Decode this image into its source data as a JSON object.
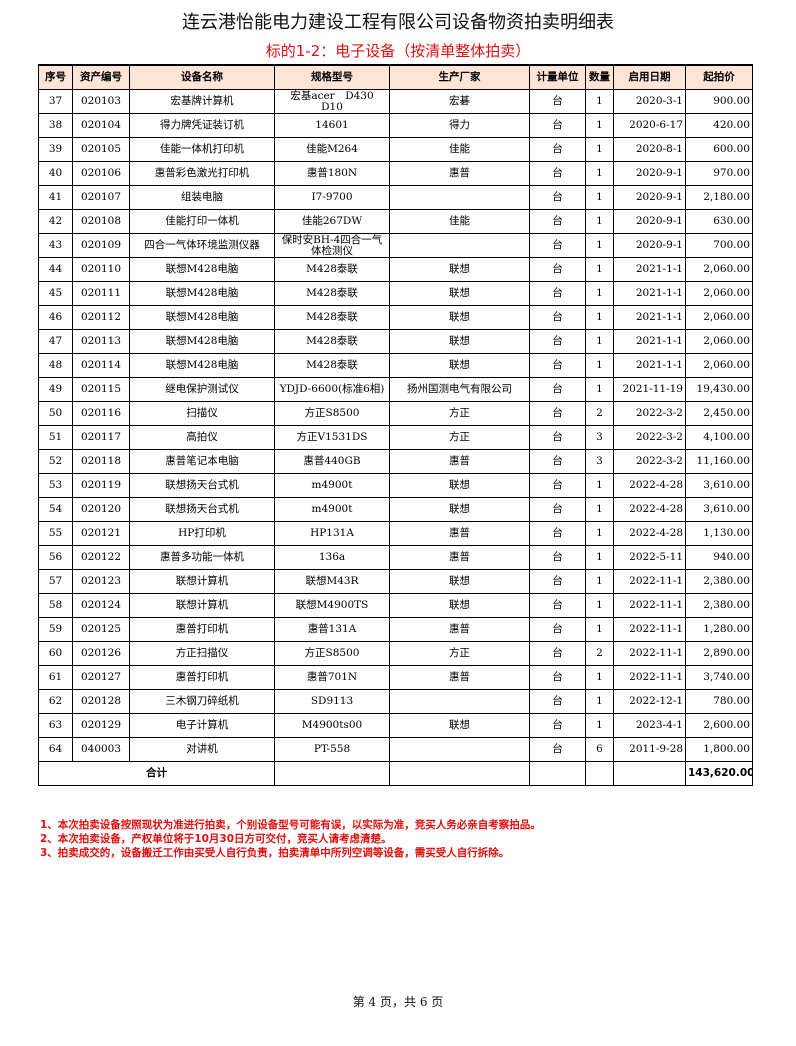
{
  "title": "连云港怡能电力建设工程有限公司设备物资拍卖明细表",
  "subtitle": "标的1-2：电子设备（按清单整体拍卖）",
  "headers": [
    "序号",
    "资产编号",
    "设备名称",
    "规格型号",
    "生产厂家",
    "计量单位",
    "数量",
    "启用日期",
    "起拍价"
  ],
  "rows": [
    [
      "37",
      "020103",
      "宏基牌计算机",
      "宏基acer　D430　D10",
      "宏碁",
      "台",
      "1",
      "2020-3-1",
      "900.00"
    ],
    [
      "38",
      "020104",
      "得力牌凭证装订机",
      "14601",
      "得力",
      "台",
      "1",
      "2020-6-17",
      "420.00"
    ],
    [
      "39",
      "020105",
      "佳能一体机打印机",
      "佳能M264",
      "佳能",
      "台",
      "1",
      "2020-8-1",
      "600.00"
    ],
    [
      "40",
      "020106",
      "惠普彩色激光打印机",
      "惠普180N",
      "惠普",
      "台",
      "1",
      "2020-9-1",
      "970.00"
    ],
    [
      "41",
      "020107",
      "组装电脑",
      "I7-9700",
      "",
      "台",
      "1",
      "2020-9-1",
      "2,180.00"
    ],
    [
      "42",
      "020108",
      "佳能打印一体机",
      "佳能267DW",
      "佳能",
      "台",
      "1",
      "2020-9-1",
      "630.00"
    ],
    [
      "43",
      "020109",
      "四合一气体环境监测仪器",
      "保时安BH-4四合一气体检测仪",
      "",
      "台",
      "1",
      "2020-9-1",
      "700.00"
    ],
    [
      "44",
      "020110",
      "联想M428电脑",
      "M428泰联",
      "联想",
      "台",
      "1",
      "2021-1-1",
      "2,060.00"
    ],
    [
      "45",
      "020111",
      "联想M428电脑",
      "M428泰联",
      "联想",
      "台",
      "1",
      "2021-1-1",
      "2,060.00"
    ],
    [
      "46",
      "020112",
      "联想M428电脑",
      "M428泰联",
      "联想",
      "台",
      "1",
      "2021-1-1",
      "2,060.00"
    ],
    [
      "47",
      "020113",
      "联想M428电脑",
      "M428泰联",
      "联想",
      "台",
      "1",
      "2021-1-1",
      "2,060.00"
    ],
    [
      "48",
      "020114",
      "联想M428电脑",
      "M428泰联",
      "联想",
      "台",
      "1",
      "2021-1-1",
      "2,060.00"
    ],
    [
      "49",
      "020115",
      "继电保护测试仪",
      "YDJD-6600(标准6相)",
      "扬州国测电气有限公司",
      "台",
      "1",
      "2021-11-19",
      "19,430.00"
    ],
    [
      "50",
      "020116",
      "扫描仪",
      "方正S8500",
      "方正",
      "台",
      "2",
      "2022-3-2",
      "2,450.00"
    ],
    [
      "51",
      "020117",
      "高拍仪",
      "方正V1531DS",
      "方正",
      "台",
      "3",
      "2022-3-2",
      "4,100.00"
    ],
    [
      "52",
      "020118",
      "惠普笔记本电脑",
      "惠普440GB",
      "惠普",
      "台",
      "3",
      "2022-3-2",
      "11,160.00"
    ],
    [
      "53",
      "020119",
      "联想扬天台式机",
      "m4900t",
      "联想",
      "台",
      "1",
      "2022-4-28",
      "3,610.00"
    ],
    [
      "54",
      "020120",
      "联想扬天台式机",
      "m4900t",
      "联想",
      "台",
      "1",
      "2022-4-28",
      "3,610.00"
    ],
    [
      "55",
      "020121",
      "HP打印机",
      "HP131A",
      "惠普",
      "台",
      "1",
      "2022-4-28",
      "1,130.00"
    ],
    [
      "56",
      "020122",
      "惠普多功能一体机",
      "136a",
      "惠普",
      "台",
      "1",
      "2022-5-11",
      "940.00"
    ],
    [
      "57",
      "020123",
      "联想计算机",
      "联想M43R",
      "联想",
      "台",
      "1",
      "2022-11-1",
      "2,380.00"
    ],
    [
      "58",
      "020124",
      "联想计算机",
      "联想M4900TS",
      "联想",
      "台",
      "1",
      "2022-11-1",
      "2,380.00"
    ],
    [
      "59",
      "020125",
      "惠普打印机",
      "惠普131A",
      "惠普",
      "台",
      "1",
      "2022-11-1",
      "1,280.00"
    ],
    [
      "60",
      "020126",
      "方正扫描仪",
      "方正S8500",
      "方正",
      "台",
      "2",
      "2022-11-1",
      "2,890.00"
    ],
    [
      "61",
      "020127",
      "惠普打印机",
      "惠普701N",
      "惠普",
      "台",
      "1",
      "2022-11-1",
      "3,740.00"
    ],
    [
      "62",
      "020128",
      "三木钢刀碎纸机",
      "SD9113",
      "",
      "台",
      "1",
      "2022-12-1",
      "780.00"
    ],
    [
      "63",
      "020129",
      "电子计算机",
      "M4900ts00",
      "联想",
      "台",
      "1",
      "2023-4-1",
      "2,600.00"
    ],
    [
      "64",
      "040003",
      "对讲机",
      "PT-558",
      "",
      "台",
      "6",
      "2011-9-28",
      "1,800.00"
    ]
  ],
  "total": {
    "label": "合计",
    "value": "143,620.00"
  },
  "notes": [
    "1、本次拍卖设备按照现状为准进行拍卖，个别设备型号可能有误，以实际为准，竞买人务必亲自考察拍品。",
    "2、本次拍卖设备，产权单位将于10月30日方可交付，竞买人请考虑清楚。",
    "3、拍卖成交的，设备搬迁工作由买受人自行负责，拍卖清单中所列空调等设备，需买受人自行拆除。"
  ],
  "footer": "第 4 页，共 6 页",
  "colors": {
    "subtitle": "#e01010",
    "header_bg": "#fce4d6",
    "notes": "#e01010"
  }
}
